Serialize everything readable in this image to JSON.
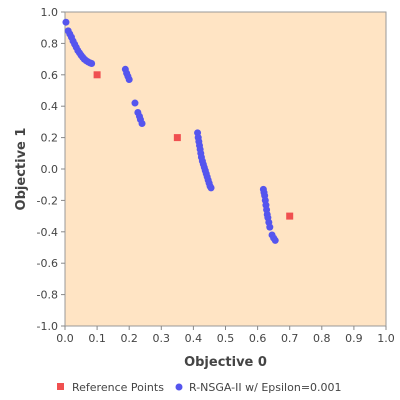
{
  "chart_data": {
    "type": "scatter",
    "title": "",
    "xlabel": "Objective 0",
    "ylabel": "Objective 1",
    "xlim": [
      0.0,
      1.0
    ],
    "ylim": [
      -1.0,
      1.0
    ],
    "x_ticks": [
      "0.0",
      "0.1",
      "0.2",
      "0.3",
      "0.4",
      "0.5",
      "0.6",
      "0.7",
      "0.8",
      "0.9",
      "1.0"
    ],
    "y_ticks": [
      "1.0",
      "0.8",
      "0.6",
      "0.4",
      "0.2",
      "0.0",
      "-0.2",
      "-0.4",
      "-0.6",
      "-0.8",
      "-1.0"
    ],
    "grid": false,
    "legend_position": "bottom",
    "background_color": "#ffe4c4",
    "series": [
      {
        "name": "Reference Points",
        "marker": "square",
        "color": "#f05050",
        "points": [
          {
            "x": 0.1,
            "y": 0.6
          },
          {
            "x": 0.35,
            "y": 0.2
          },
          {
            "x": 0.7,
            "y": -0.3
          }
        ]
      },
      {
        "name": "R-NSGA-II w/ Epsilon=0.001",
        "marker": "circle",
        "color": "#5555ee",
        "points": [
          {
            "x": 0.003,
            "y": 0.935
          },
          {
            "x": 0.01,
            "y": 0.88
          },
          {
            "x": 0.015,
            "y": 0.86
          },
          {
            "x": 0.02,
            "y": 0.84
          },
          {
            "x": 0.025,
            "y": 0.815
          },
          {
            "x": 0.03,
            "y": 0.795
          },
          {
            "x": 0.035,
            "y": 0.775
          },
          {
            "x": 0.04,
            "y": 0.755
          },
          {
            "x": 0.045,
            "y": 0.74
          },
          {
            "x": 0.05,
            "y": 0.725
          },
          {
            "x": 0.055,
            "y": 0.712
          },
          {
            "x": 0.06,
            "y": 0.7
          },
          {
            "x": 0.066,
            "y": 0.69
          },
          {
            "x": 0.072,
            "y": 0.682
          },
          {
            "x": 0.078,
            "y": 0.676
          },
          {
            "x": 0.083,
            "y": 0.672
          },
          {
            "x": 0.188,
            "y": 0.635
          },
          {
            "x": 0.192,
            "y": 0.61
          },
          {
            "x": 0.196,
            "y": 0.59
          },
          {
            "x": 0.2,
            "y": 0.57
          },
          {
            "x": 0.218,
            "y": 0.42
          },
          {
            "x": 0.227,
            "y": 0.36
          },
          {
            "x": 0.232,
            "y": 0.335
          },
          {
            "x": 0.235,
            "y": 0.315
          },
          {
            "x": 0.24,
            "y": 0.29
          },
          {
            "x": 0.413,
            "y": 0.23
          },
          {
            "x": 0.415,
            "y": 0.2
          },
          {
            "x": 0.417,
            "y": 0.175
          },
          {
            "x": 0.419,
            "y": 0.15
          },
          {
            "x": 0.421,
            "y": 0.125
          },
          {
            "x": 0.423,
            "y": 0.1
          },
          {
            "x": 0.425,
            "y": 0.075
          },
          {
            "x": 0.428,
            "y": 0.05
          },
          {
            "x": 0.431,
            "y": 0.03
          },
          {
            "x": 0.434,
            "y": 0.01
          },
          {
            "x": 0.437,
            "y": -0.01
          },
          {
            "x": 0.44,
            "y": -0.03
          },
          {
            "x": 0.443,
            "y": -0.05
          },
          {
            "x": 0.446,
            "y": -0.07
          },
          {
            "x": 0.449,
            "y": -0.09
          },
          {
            "x": 0.452,
            "y": -0.11
          },
          {
            "x": 0.455,
            "y": -0.12
          },
          {
            "x": 0.618,
            "y": -0.13
          },
          {
            "x": 0.62,
            "y": -0.15
          },
          {
            "x": 0.622,
            "y": -0.17
          },
          {
            "x": 0.624,
            "y": -0.2
          },
          {
            "x": 0.626,
            "y": -0.23
          },
          {
            "x": 0.628,
            "y": -0.26
          },
          {
            "x": 0.63,
            "y": -0.29
          },
          {
            "x": 0.632,
            "y": -0.31
          },
          {
            "x": 0.635,
            "y": -0.34
          },
          {
            "x": 0.638,
            "y": -0.37
          },
          {
            "x": 0.645,
            "y": -0.42
          },
          {
            "x": 0.65,
            "y": -0.44
          },
          {
            "x": 0.655,
            "y": -0.455
          }
        ]
      }
    ]
  }
}
